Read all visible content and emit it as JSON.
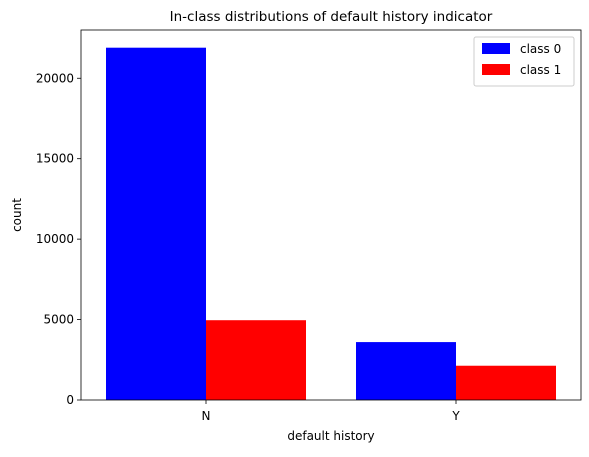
{
  "chart_data": {
    "type": "bar",
    "title": "In-class distributions of default history indicator",
    "xlabel": "default history",
    "ylabel": "count",
    "categories": [
      "N",
      "Y"
    ],
    "series": [
      {
        "name": "class 0",
        "color": "#0000ff",
        "values": [
          21900,
          3600
        ]
      },
      {
        "name": "class 1",
        "color": "#ff0000",
        "values": [
          4960,
          2130
        ]
      }
    ],
    "yticks": [
      0,
      5000,
      10000,
      15000,
      20000
    ],
    "ytick_labels": [
      "0",
      "5000",
      "10000",
      "15000",
      "20000"
    ],
    "ylim": [
      0,
      23000
    ],
    "grid": false,
    "legend_position": "top-right"
  }
}
